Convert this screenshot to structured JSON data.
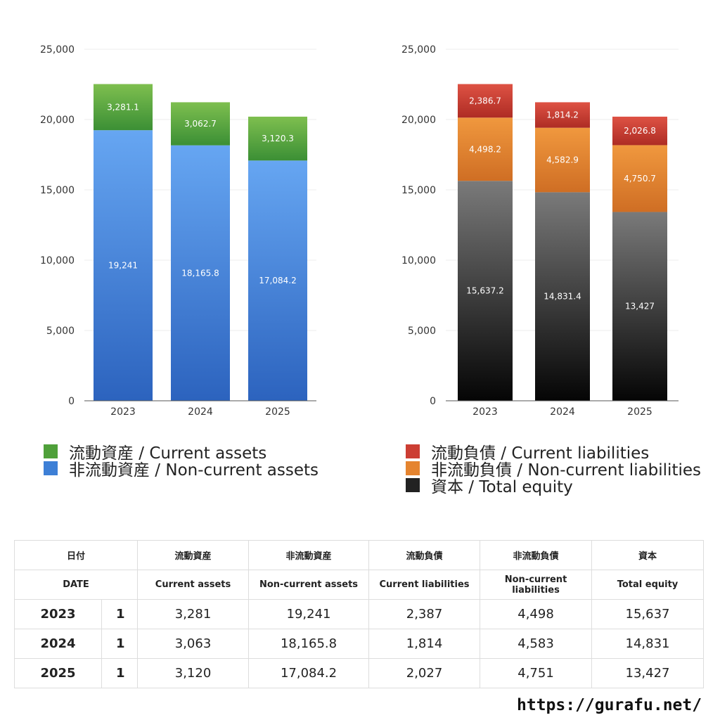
{
  "chart_data": [
    {
      "type": "bar",
      "stacked": true,
      "categories": [
        "2023",
        "2024",
        "2025"
      ],
      "y_ticks": [
        "0",
        "5,000",
        "10,000",
        "15,000",
        "20,000",
        "25,000"
      ],
      "ylim": [
        0,
        25000
      ],
      "grid": true,
      "series": [
        {
          "name": "非流動資産 / Non-current assets",
          "values": [
            19241,
            18165.8,
            17084.2
          ],
          "labels": [
            "19,241",
            "18,165.8",
            "17,084.2"
          ],
          "color_top": "#66a6f2",
          "color_bottom": "#2c63be"
        },
        {
          "name": "流動資産 / Current assets",
          "values": [
            3281.1,
            3062.7,
            3120.3
          ],
          "labels": [
            "3,281.1",
            "3,062.7",
            "3,120.3"
          ],
          "color_top": "#7ebf4f",
          "color_bottom": "#3b8f35"
        }
      ],
      "legend_position": "bottom"
    },
    {
      "type": "bar",
      "stacked": true,
      "categories": [
        "2023",
        "2024",
        "2025"
      ],
      "y_ticks": [
        "0",
        "5,000",
        "10,000",
        "15,000",
        "20,000",
        "25,000"
      ],
      "ylim": [
        0,
        25000
      ],
      "grid": true,
      "series": [
        {
          "name": "資本 / Total equity",
          "values": [
            15637.2,
            14831.4,
            13427
          ],
          "labels": [
            "15,637.2",
            "14,831.4",
            "13,427"
          ],
          "color_top": "#7a7a7a",
          "color_bottom": "#050505"
        },
        {
          "name": "非流動負債 / Non-current liabilities",
          "values": [
            4498.2,
            4582.9,
            4750.7
          ],
          "labels": [
            "4,498.2",
            "4,582.9",
            "4,750.7"
          ],
          "color_top": "#f0983e",
          "color_bottom": "#cf6e24"
        },
        {
          "name": "流動負債 / Current liabilities",
          "values": [
            2386.7,
            1814.2,
            2026.8
          ],
          "labels": [
            "2,386.7",
            "1,814.2",
            "2,026.8"
          ],
          "color_top": "#de5244",
          "color_bottom": "#ae2c24"
        }
      ],
      "legend_position": "bottom"
    }
  ],
  "legend_left": [
    {
      "label": "流動資産 / Current assets",
      "color": "#4fa03a"
    },
    {
      "label": "非流動資産 / Non-current assets",
      "color": "#3d7fd6"
    }
  ],
  "legend_right": [
    {
      "label": "流動負債 / Current liabilities",
      "color": "#cc3e33"
    },
    {
      "label": "非流動負債 / Non-current liabilities",
      "color": "#e5842f"
    },
    {
      "label": "資本 / Total equity",
      "color": "#222222"
    }
  ],
  "table": {
    "header_jp": [
      "日付",
      "流動資産",
      "非流動資産",
      "流動負債",
      "非流動負債",
      "資本"
    ],
    "header_en": [
      "DATE",
      "Current assets",
      "Non-current assets",
      "Current liabilities",
      "Non-current liabilities",
      "Total equity"
    ],
    "rows": [
      {
        "year": "2023",
        "n": "1",
        "cells": [
          "3,281",
          "19,241",
          "2,387",
          "4,498",
          "15,637"
        ]
      },
      {
        "year": "2024",
        "n": "1",
        "cells": [
          "3,063",
          "18,165.8",
          "1,814",
          "4,583",
          "14,831"
        ]
      },
      {
        "year": "2025",
        "n": "1",
        "cells": [
          "3,120",
          "17,084.2",
          "2,027",
          "4,751",
          "13,427"
        ]
      }
    ]
  },
  "footer": {
    "url": "https://gurafu.net/"
  }
}
